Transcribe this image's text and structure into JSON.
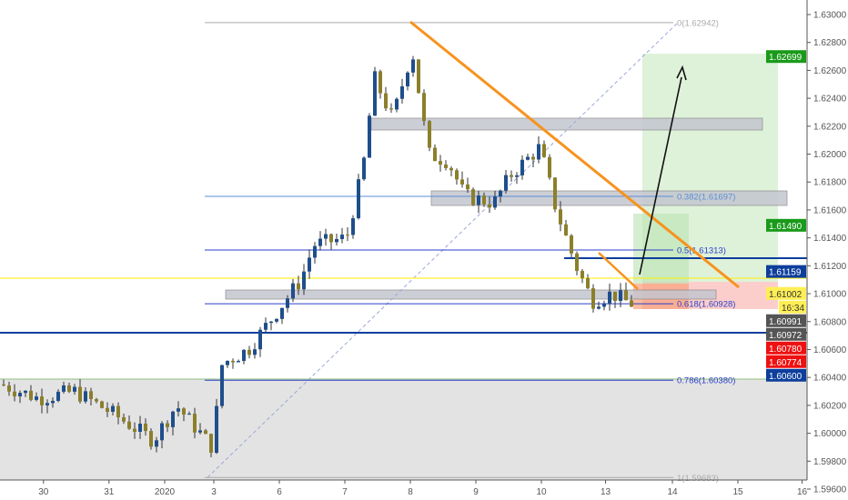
{
  "chart_data": {
    "type": "candlestick",
    "title": "",
    "ylim": [
      1.5945,
      1.6315
    ],
    "y_ticks": [
      "1.63000",
      "1.62800",
      "1.62600",
      "1.62400",
      "1.62200",
      "1.62000",
      "1.61800",
      "1.61600",
      "1.61400",
      "1.61200",
      "1.61000",
      "1.60800",
      "1.60600",
      "1.60400",
      "1.60200",
      "1.60000",
      "1.59800",
      "1.59600"
    ],
    "x_ticks": [
      {
        "label": "30",
        "t": -3
      },
      {
        "label": "31",
        "t": -2
      },
      {
        "label": "2020",
        "t": -1.15
      },
      {
        "label": "3",
        "t": -0.4
      },
      {
        "label": "6",
        "t": 0.6
      },
      {
        "label": "7",
        "t": 1.6
      },
      {
        "label": "8",
        "t": 2.6
      },
      {
        "label": "9",
        "t": 3.6
      },
      {
        "label": "10",
        "t": 4.6
      },
      {
        "label": "13",
        "t": 5.58
      },
      {
        "label": "14",
        "t": 6.6
      },
      {
        "label": "15",
        "t": 7.6
      },
      {
        "label": "16",
        "t": 8.58
      }
    ],
    "price_path": [
      [
        -3.67,
        1.6035
      ],
      [
        -3.1,
        1.6025
      ],
      [
        -2.55,
        1.603
      ],
      [
        -2.0,
        1.6015
      ],
      [
        -1.35,
        1.5995
      ],
      [
        -1.0,
        1.602
      ],
      [
        -0.45,
        1.599
      ],
      [
        -0.3,
        1.605
      ],
      [
        0.1,
        1.606
      ],
      [
        0.5,
        1.6085
      ],
      [
        0.9,
        1.611
      ],
      [
        1.1,
        1.6135
      ],
      [
        1.6,
        1.614
      ],
      [
        1.85,
        1.619
      ],
      [
        2.02,
        1.6255
      ],
      [
        2.3,
        1.6225
      ],
      [
        2.6,
        1.6275
      ],
      [
        2.85,
        1.62
      ],
      [
        3.15,
        1.6195
      ],
      [
        3.4,
        1.617
      ],
      [
        3.85,
        1.6165
      ],
      [
        4.1,
        1.6185
      ],
      [
        4.55,
        1.6205
      ],
      [
        4.8,
        1.616
      ],
      [
        5.1,
        1.612
      ],
      [
        5.35,
        1.6095
      ],
      [
        5.65,
        1.61
      ],
      [
        5.92,
        1.6093
      ]
    ],
    "fibonacci": [
      {
        "level": "0",
        "price": 1.62942,
        "label": "0(1.62942)",
        "color": "#aaaaaa"
      },
      {
        "level": "0.382",
        "price": 1.61697,
        "label": "0.382(1.61697)",
        "color": "#5b8fd6"
      },
      {
        "level": "0.5",
        "price": 1.61313,
        "label": "0.5(1.61313)",
        "color": "#2b3fc8"
      },
      {
        "level": "0.618",
        "price": 1.60928,
        "label": "0.618(1.60928)",
        "color": "#2b3fc8"
      },
      {
        "level": "0.786",
        "price": 1.6038,
        "label": "0.786(1.60380)",
        "color": "#2b3fc8"
      },
      {
        "level": "1",
        "price": 1.59683,
        "label": "1(1.59683)",
        "color": "#aaaaaa"
      }
    ],
    "price_tags": [
      {
        "label": "1.62699",
        "price": 1.62699,
        "bg": "#1a9a1a",
        "fg": "#ffffff"
      },
      {
        "label": "1.61490",
        "price": 1.6149,
        "bg": "#1a9a1a",
        "fg": "#ffffff"
      },
      {
        "label": "1.61159",
        "price": 1.61159,
        "bg": "#0d3e9c",
        "fg": "#ffffff"
      },
      {
        "label": "1.61002",
        "price": 1.61002,
        "bg": "#ffee55",
        "fg": "#333333"
      },
      {
        "label": "16:34",
        "price": 1.60955,
        "bg": "#ffee55",
        "fg": "#333333",
        "short": true
      },
      {
        "label": "1.60991",
        "price": 1.60905,
        "bg": "#555555",
        "fg": "#ffffff"
      },
      {
        "label": "1.60972",
        "price": 1.608,
        "bg": "#555555",
        "fg": "#ffffff"
      },
      {
        "label": "1.60780",
        "price": 1.6068,
        "bg": "#ee1111",
        "fg": "#ffffff"
      },
      {
        "label": "1.60774",
        "price": 1.60578,
        "bg": "#ee1111",
        "fg": "#ffffff"
      },
      {
        "label": "1.60600",
        "price": 1.60475,
        "bg": "#0d3e9c",
        "fg": "#ffffff"
      }
    ],
    "colors": {
      "up": "#1f4e8c",
      "down": "#8c7f2a",
      "wick": "#333333",
      "trendline": "#f7931e",
      "current": "#ffee00",
      "level": "#0d3e9c"
    }
  }
}
